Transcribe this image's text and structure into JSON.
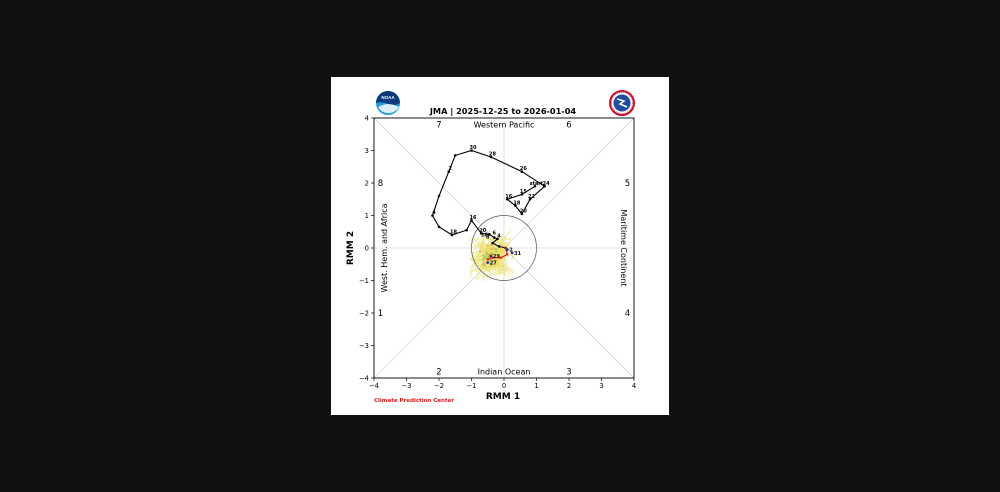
{
  "figure": {
    "credit": "Climate Prediction Center",
    "logo_left": "noaa-logo",
    "logo_left_text": "NOAA",
    "logo_right": "nws-logo"
  },
  "chart_data": {
    "type": "line",
    "title": "JMA | 2025-12-25 to 2026-01-04",
    "xlabel": "RMM 1",
    "ylabel": "RMM 2",
    "xlim": [
      -4,
      4
    ],
    "ylim": [
      -4,
      4
    ],
    "xticks": [
      -4,
      -3,
      -2,
      -1,
      0,
      1,
      2,
      3,
      4
    ],
    "yticks": [
      -4,
      -3,
      -2,
      -1,
      0,
      1,
      2,
      3,
      4
    ],
    "grid": false,
    "unit_circle_radius": 1,
    "phases": [
      {
        "label": "1",
        "x": -3.8,
        "y": -2.0
      },
      {
        "label": "2",
        "x": -2.0,
        "y": -3.8
      },
      {
        "label": "3",
        "x": 2.0,
        "y": -3.8
      },
      {
        "label": "4",
        "x": 3.8,
        "y": -2.0
      },
      {
        "label": "5",
        "x": 3.8,
        "y": 2.0
      },
      {
        "label": "6",
        "x": 2.0,
        "y": 3.8
      },
      {
        "label": "7",
        "x": -2.0,
        "y": 3.8
      },
      {
        "label": "8",
        "x": -3.8,
        "y": 2.0
      }
    ],
    "regions": {
      "top": "Western Pacific",
      "bottom": "Indian Ocean",
      "left": "West. Hem. and Africa",
      "right": "Maritime Continent"
    },
    "observed": {
      "color": "#000000",
      "points": [
        {
          "x": 0.95,
          "y": 1.9,
          "label": "start"
        },
        {
          "x": 0.55,
          "y": 1.65,
          "label": "15"
        },
        {
          "x": 0.1,
          "y": 1.5,
          "label": "16"
        },
        {
          "x": 0.35,
          "y": 1.3,
          "label": "18"
        },
        {
          "x": 0.55,
          "y": 1.05,
          "label": "20"
        },
        {
          "x": 0.8,
          "y": 1.5,
          "label": "22"
        },
        {
          "x": 1.25,
          "y": 1.9,
          "label": "24"
        },
        {
          "x": 0.55,
          "y": 2.35,
          "label": "26"
        },
        {
          "x": -0.4,
          "y": 2.8,
          "label": "28"
        },
        {
          "x": -1.0,
          "y": 3.0,
          "label": "30"
        },
        {
          "x": -1.5,
          "y": 2.85,
          "label": ""
        },
        {
          "x": -1.7,
          "y": 2.35,
          "label": "2"
        },
        {
          "x": -2.0,
          "y": 1.6,
          "label": ""
        },
        {
          "x": -2.2,
          "y": 1.0,
          "label": "4"
        },
        {
          "x": -2.0,
          "y": 0.65,
          "label": ""
        },
        {
          "x": -1.6,
          "y": 0.4,
          "label": "18"
        },
        {
          "x": -1.15,
          "y": 0.55,
          "label": ""
        },
        {
          "x": -1.0,
          "y": 0.85,
          "label": "16"
        },
        {
          "x": -0.7,
          "y": 0.45,
          "label": "20"
        },
        {
          "x": -0.45,
          "y": 0.42,
          "label": ""
        },
        {
          "x": -0.3,
          "y": 0.32,
          "label": ""
        },
        {
          "x": -0.2,
          "y": 0.28,
          "label": "4"
        },
        {
          "x": -0.35,
          "y": 0.15,
          "label": ""
        },
        {
          "x": -0.15,
          "y": 0.05,
          "label": ""
        },
        {
          "x": 0.05,
          "y": 0.0,
          "label": ""
        }
      ],
      "extra_labels": [
        {
          "x": -0.5,
          "y": 0.3,
          "label": "8"
        },
        {
          "x": -0.3,
          "y": 0.42,
          "label": "6"
        },
        {
          "x": -0.6,
          "y": 0.35,
          "label": "10"
        }
      ]
    },
    "forecast_mean": {
      "color": "#e41a1c",
      "points": [
        {
          "x": 0.05,
          "y": 0.0,
          "label": ""
        },
        {
          "x": 0.1,
          "y": -0.2,
          "label": "31"
        },
        {
          "x": -0.1,
          "y": -0.3,
          "label": ""
        },
        {
          "x": -0.35,
          "y": -0.3,
          "label": ""
        },
        {
          "x": -0.5,
          "y": -0.35,
          "label": "27"
        }
      ]
    },
    "forecast_points": [
      {
        "x": 0.1,
        "y": -0.05,
        "label": "2"
      },
      {
        "x": 0.25,
        "y": -0.15,
        "label": "31"
      },
      {
        "x": -0.4,
        "y": -0.25,
        "label": "29"
      },
      {
        "x": -0.5,
        "y": -0.45,
        "label": "27"
      }
    ],
    "ensemble": {
      "color": "#e8e06a",
      "center": [
        -0.35,
        -0.25
      ],
      "spread": 0.85
    }
  }
}
